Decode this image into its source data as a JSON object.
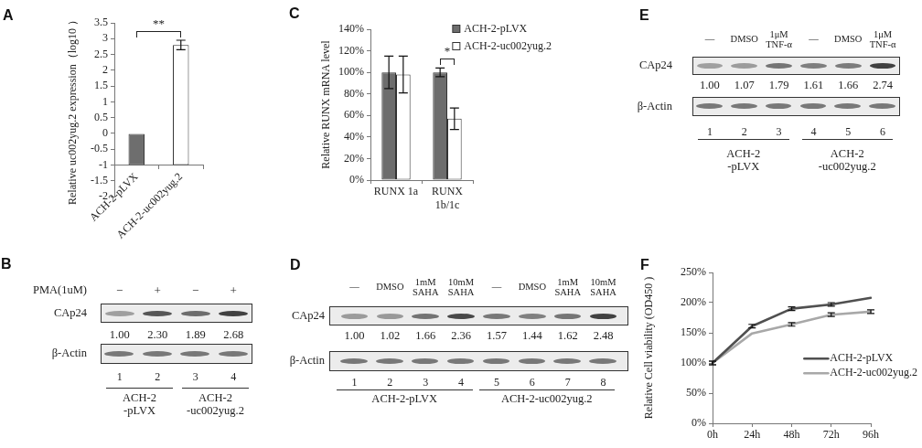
{
  "chart_data": [
    {
      "type": "bar",
      "title": "A",
      "ylabel": "Relative uc002yug.2 expression（log10 ）",
      "categories": [
        "ACH-2-pLVX",
        "ACH-2-uc002yug.2"
      ],
      "base": [
        -1,
        -1
      ],
      "values": [
        1,
        3.8
      ],
      "colors": [
        "#6e6e6e",
        "#ffffff"
      ],
      "errors": [
        null,
        0.15
      ],
      "ylim": [
        -2,
        3.5
      ],
      "yticks": [
        -2,
        -1.5,
        -1,
        -0.5,
        0,
        0.5,
        1,
        1.5,
        2,
        2.5,
        3,
        3.5
      ],
      "grid": false,
      "annotations": [
        "**"
      ]
    },
    {
      "type": "bar",
      "title": "C",
      "ylabel": "Relative RUNX mRNA level",
      "categories": [
        "RUNX 1a",
        "RUNX\n1b/1c"
      ],
      "series": [
        {
          "name": "ACH-2-pLVX",
          "color": "#6d6d6d",
          "values": [
            100,
            100
          ],
          "errors": [
            15,
            4
          ]
        },
        {
          "name": "ACH-2-uc002yug.2",
          "color": "#ffffff",
          "values": [
            98,
            57
          ],
          "errors": [
            17,
            10
          ]
        }
      ],
      "ylim": [
        0,
        140
      ],
      "yticks": [
        {
          "value": 0,
          "label": "0%"
        },
        {
          "value": 20,
          "label": "20%"
        },
        {
          "value": 40,
          "label": "40%"
        },
        {
          "value": 60,
          "label": "60%"
        },
        {
          "value": 80,
          "label": "80%"
        },
        {
          "value": 100,
          "label": "100%"
        },
        {
          "value": 120,
          "label": "120%"
        },
        {
          "value": 140,
          "label": "140%"
        }
      ],
      "grid": false,
      "legend": "top right",
      "annotations": [
        "*"
      ]
    },
    {
      "type": "heatmap",
      "title": "E",
      "categories": [
        "1",
        "2",
        "3",
        "4",
        "5",
        "6"
      ],
      "y_categories": [
        "CAp24",
        "β-Actin"
      ],
      "cells": [
        [
          1.0,
          1.07,
          1.79,
          1.61,
          1.66,
          2.74
        ],
        [
          null,
          null,
          null,
          null,
          null,
          null
        ]
      ],
      "cell_labels": [
        [
          "1.00",
          "1.07",
          "1.79",
          "1.61",
          "1.66",
          "2.74"
        ],
        [
          null,
          null,
          null,
          null,
          null,
          null
        ]
      ],
      "annotations": [
        "—",
        "DMSO",
        "1μM\nTNF-α",
        "—",
        "DMSO",
        "1μM\nTNF-α",
        "ACH-2\n-pLVX",
        "ACH-2\n-uc002yug.2"
      ]
    },
    {
      "type": "heatmap",
      "title": "B",
      "xlabel": "PMA(1uM)",
      "categories": [
        "1",
        "2",
        "3",
        "4"
      ],
      "y_categories": [
        "CAp24",
        "β-Actin"
      ],
      "cells": [
        [
          1.0,
          2.3,
          1.89,
          2.68
        ],
        [
          null,
          null,
          null,
          null
        ]
      ],
      "cell_labels": [
        [
          "1.00",
          "2.30",
          "1.89",
          "2.68"
        ],
        [
          null,
          null,
          null,
          null
        ]
      ],
      "annotations": [
        "−",
        "+",
        "−",
        "+",
        "ACH-2\n-pLVX",
        "ACH-2\n-uc002yug.2"
      ]
    },
    {
      "type": "heatmap",
      "title": "D",
      "categories": [
        "1",
        "2",
        "3",
        "4",
        "5",
        "6",
        "7",
        "8"
      ],
      "y_categories": [
        "CAp24",
        "β-Actin"
      ],
      "cells": [
        [
          1.0,
          1.02,
          1.66,
          2.36,
          1.57,
          1.44,
          1.62,
          2.48
        ],
        [
          null,
          null,
          null,
          null,
          null,
          null,
          null,
          null
        ]
      ],
      "cell_labels": [
        [
          "1.00",
          "1.02",
          "1.66",
          "2.36",
          "1.57",
          "1.44",
          "1.62",
          "2.48"
        ],
        [
          null,
          null,
          null,
          null,
          null,
          null,
          null,
          null
        ]
      ],
      "annotations": [
        "—",
        "DMSO",
        "1mM\nSAHA",
        "10mM\nSAHA",
        "—",
        "DMSO",
        "1mM\nSAHA",
        "10mM\nSAHA",
        "ACH-2-pLVX",
        "ACH-2-uc002yug.2"
      ]
    },
    {
      "type": "line",
      "title": "F",
      "ylabel": "Relative Cell viability (OD450 )",
      "categories": [
        "0h",
        "24h",
        "48h",
        "72h",
        "96h"
      ],
      "series": [
        {
          "name": "ACH-2-pLVX",
          "color": "#505050",
          "values": [
            100,
            161,
            190,
            197,
            208
          ],
          "errors": [
            3,
            3,
            3,
            3,
            null
          ]
        },
        {
          "name": "ACH-2-uc002yug.2",
          "color": "#a8a8a8",
          "values": [
            100,
            149,
            164,
            180,
            185
          ],
          "errors": [
            3,
            null,
            3,
            3,
            3
          ]
        }
      ],
      "ylim": [
        0,
        250
      ],
      "yticks": [
        {
          "value": 0,
          "label": "0%"
        },
        {
          "value": 50,
          "label": "50%"
        },
        {
          "value": 100,
          "label": "100%"
        },
        {
          "value": 150,
          "label": "150%"
        },
        {
          "value": 200,
          "label": "200%"
        },
        {
          "value": 250,
          "label": "250%"
        }
      ],
      "grid": false,
      "legend": "right",
      "marker": "none"
    }
  ]
}
